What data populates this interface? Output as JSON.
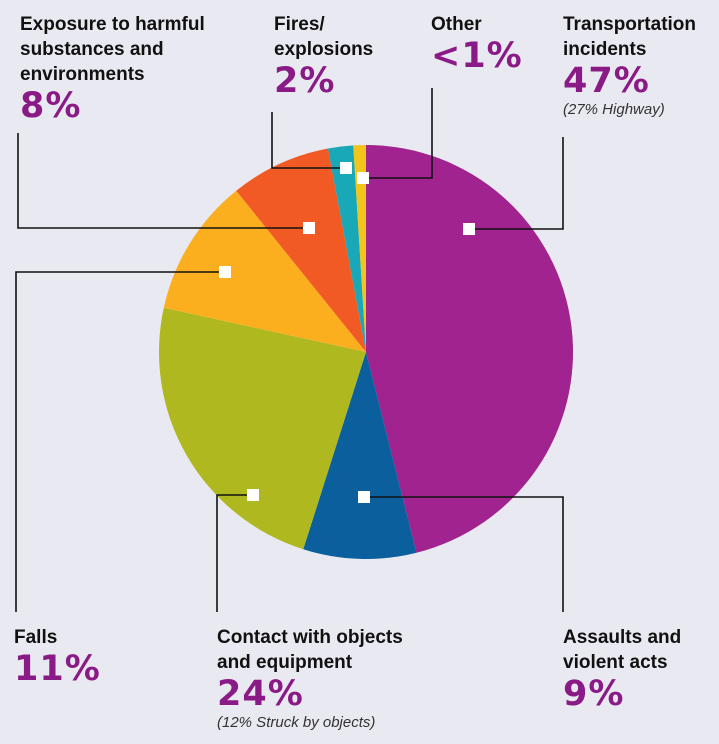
{
  "chart_data": {
    "type": "pie",
    "slices": [
      {
        "name": "Transportation incidents",
        "value": 47,
        "label": "47%",
        "note": "(27% Highway)",
        "color": "#a0238f"
      },
      {
        "name": "Assaults and violent acts",
        "value": 9,
        "label": "9%",
        "color": "#0b5f9c"
      },
      {
        "name": "Contact with objects and equipment",
        "value": 24,
        "label": "24%",
        "note": "(12% Struck by objects)",
        "color": "#b0b81f"
      },
      {
        "name": "Falls",
        "value": 11,
        "label": "11%",
        "color": "#fbaf1f"
      },
      {
        "name": "Exposure to harmful substances and environments",
        "value": 8,
        "label": "8%",
        "color": "#f15a24"
      },
      {
        "name": "Fires/ explosions",
        "value": 2,
        "label": "2%",
        "color": "#19a8b8"
      },
      {
        "name": "Other",
        "value": 1,
        "label": "<1%",
        "color": "#f3c51a"
      }
    ]
  },
  "labels": {
    "exposure": {
      "name": "Exposure to harmful\nsubstances and\nenvironments",
      "pct": "8%"
    },
    "fires": {
      "name": "Fires/\nexplosions",
      "pct": "2%"
    },
    "other": {
      "name": "Other",
      "pct": "<1%"
    },
    "transport": {
      "name": "Transportation\nincidents",
      "pct": "47%",
      "sub": "(27% Highway)"
    },
    "falls": {
      "name": "Falls",
      "pct": "11%"
    },
    "contact": {
      "name": "Contact with objects\nand equipment",
      "pct": "24%",
      "sub": "(12% Struck by objects)"
    },
    "assaults": {
      "name": "Assaults and\nviolent acts",
      "pct": "9%"
    }
  }
}
